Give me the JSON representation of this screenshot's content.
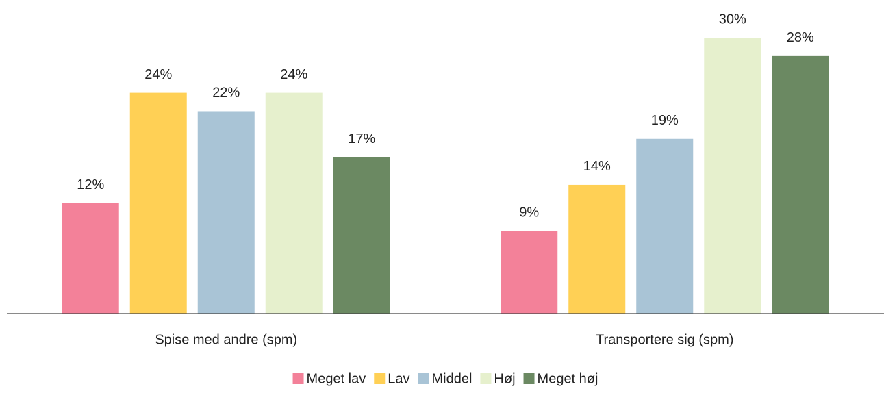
{
  "chart_data": {
    "type": "bar",
    "categories": [
      "Spise med andre (spm)",
      "Transportere sig (spm)"
    ],
    "series": [
      {
        "name": "Meget lav",
        "color": "#f38199",
        "values": [
          12,
          9
        ],
        "value_labels": [
          "12%",
          "9%"
        ]
      },
      {
        "name": "Lav",
        "color": "#ffd055",
        "values": [
          24,
          14
        ],
        "value_labels": [
          "24%",
          "14%"
        ]
      },
      {
        "name": "Middel",
        "color": "#a9c4d6",
        "values": [
          22,
          19
        ],
        "value_labels": [
          "22%",
          "19%"
        ]
      },
      {
        "name": "Høj",
        "color": "#e6f0cd",
        "values": [
          24,
          30
        ],
        "value_labels": [
          "24%",
          "30%"
        ]
      },
      {
        "name": "Meget høj",
        "color": "#6b8962",
        "values": [
          17,
          28
        ],
        "value_labels": [
          "17%",
          "28%"
        ]
      }
    ]
  }
}
